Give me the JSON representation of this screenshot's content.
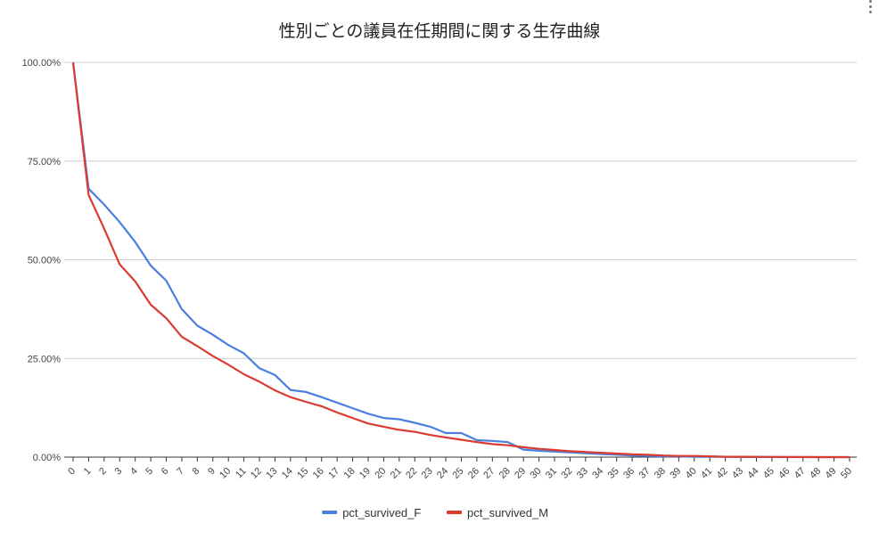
{
  "chart_data": {
    "type": "line",
    "title": "性別ごとの議員在任期間に関する生存曲線",
    "xlabel": "",
    "ylabel": "",
    "x": [
      0,
      1,
      2,
      3,
      4,
      5,
      6,
      7,
      8,
      9,
      10,
      11,
      12,
      13,
      14,
      15,
      16,
      17,
      18,
      19,
      20,
      21,
      22,
      23,
      24,
      25,
      26,
      27,
      28,
      29,
      30,
      31,
      32,
      33,
      34,
      35,
      36,
      37,
      38,
      39,
      40,
      41,
      42,
      43,
      44,
      45,
      46,
      47,
      48,
      49,
      50
    ],
    "ylim": [
      0,
      1
    ],
    "y_ticks": [
      "0.00%",
      "25.00%",
      "50.00%",
      "75.00%",
      "100.00%"
    ],
    "grid": true,
    "legend_position": "bottom",
    "series": [
      {
        "name": "pct_survived_F",
        "color": "#4a7fe0",
        "values": [
          1.0,
          0.68,
          0.64,
          0.595,
          0.545,
          0.485,
          0.447,
          0.375,
          0.333,
          0.31,
          0.284,
          0.263,
          0.225,
          0.208,
          0.17,
          0.165,
          0.152,
          0.138,
          0.124,
          0.11,
          0.099,
          0.096,
          0.087,
          0.077,
          0.061,
          0.061,
          0.043,
          0.041,
          0.038,
          0.019,
          0.016,
          0.014,
          0.012,
          0.01,
          0.008,
          0.006,
          0.004,
          0.003,
          0.002,
          0.002,
          0.001,
          0.001,
          0.001,
          0.0005,
          0.0003,
          0.0002,
          0.0001,
          0.0,
          0.0,
          0.0,
          0.0
        ]
      },
      {
        "name": "pct_survived_M",
        "color": "#db3b30",
        "values": [
          1.0,
          0.664,
          0.579,
          0.488,
          0.445,
          0.386,
          0.352,
          0.305,
          0.281,
          0.256,
          0.234,
          0.21,
          0.191,
          0.169,
          0.152,
          0.14,
          0.129,
          0.113,
          0.099,
          0.085,
          0.077,
          0.069,
          0.064,
          0.056,
          0.05,
          0.044,
          0.038,
          0.033,
          0.03,
          0.025,
          0.021,
          0.018,
          0.015,
          0.013,
          0.011,
          0.009,
          0.007,
          0.006,
          0.004,
          0.003,
          0.003,
          0.002,
          0.001,
          0.001,
          0.0007,
          0.0005,
          0.0003,
          0.0002,
          0.0001,
          0.0001,
          0.0
        ]
      }
    ]
  }
}
